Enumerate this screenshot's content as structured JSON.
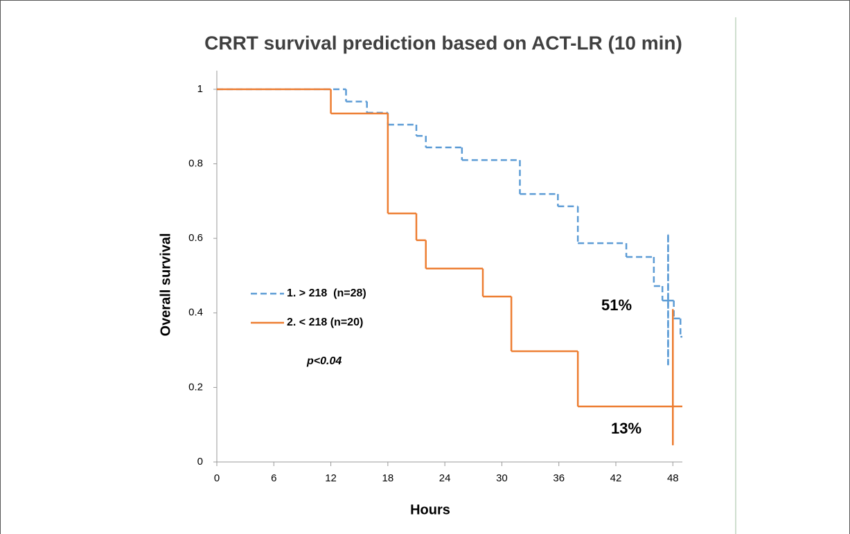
{
  "chart_data": {
    "type": "step",
    "title": "CRRT survival prediction based on ACT-LR (10 min)",
    "x_label": "Hours",
    "y_label": "Overall survival",
    "xlim": [
      0,
      49
    ],
    "xticks": [
      0,
      6,
      12,
      18,
      24,
      30,
      36,
      42,
      48
    ],
    "ylim": [
      0,
      1.05
    ],
    "yticks": [
      0,
      0.2,
      0.4,
      0.6,
      0.8,
      1
    ],
    "legend": "left",
    "series": [
      {
        "name": "1. > 218  (n=28)",
        "color": "#5b9bd5",
        "dash": true,
        "x": [
          0,
          13.6,
          15.8,
          18,
          21,
          22,
          25.8,
          31.9,
          35.9,
          38,
          43.1,
          46,
          46.9,
          47.5,
          47.5,
          47.5,
          48.1,
          48.8
        ],
        "values": [
          1,
          0.967,
          0.937,
          0.905,
          0.875,
          0.844,
          0.81,
          0.719,
          0.686,
          0.587,
          0.55,
          0.472,
          0.433,
          0.61,
          0.26,
          0.433,
          0.385,
          0.336
        ]
      },
      {
        "name": "2. < 218 (n=20)",
        "color": "#ed7d31",
        "dash": false,
        "x": [
          0,
          12,
          18,
          21,
          22,
          28,
          31,
          38,
          48,
          48,
          48
        ],
        "values": [
          1,
          0.935,
          0.667,
          0.595,
          0.519,
          0.444,
          0.297,
          0.149,
          0.41,
          0.045,
          0.149
        ]
      }
    ],
    "annotations": [
      "p<0.04",
      "51%",
      "13%"
    ]
  }
}
